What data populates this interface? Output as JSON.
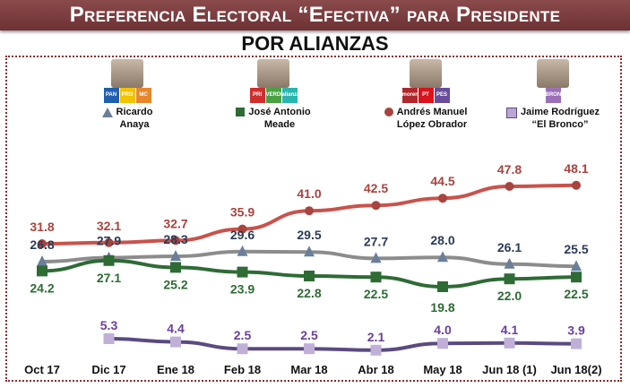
{
  "header": {
    "title": "Preferencia Electoral “Efectiva” para Presidente",
    "subtitle": "POR ALIANZAS"
  },
  "legend": [
    {
      "line1": "Ricardo",
      "line2": "Anaya",
      "marker": "triangle",
      "color": "#6b7f99",
      "logos": [
        "PAN",
        "PRD",
        "MC"
      ],
      "logo_colors": [
        "#1f5fae",
        "#f3c200",
        "#e8862a"
      ]
    },
    {
      "line1": "José Antonio",
      "line2": "Meade",
      "marker": "square",
      "color": "#2e6b35",
      "logos": [
        "PRI",
        "VERDE",
        "alianza"
      ],
      "logo_colors": [
        "#d12d2d",
        "#4aa042",
        "#2ab5b0"
      ]
    },
    {
      "line1": "Andrés  Manuel",
      "line2": "López  Obrador",
      "marker": "circle",
      "color": "#a8443f",
      "logos": [
        "morena",
        "PT",
        "PES"
      ],
      "logo_colors": [
        "#b0282b",
        "#d8131b",
        "#6a4c9c"
      ]
    },
    {
      "line1": "Jaime Rodríguez",
      "line2": "“El Bronco”",
      "marker": "square",
      "color": "#b9a6d4",
      "logos": [
        "BRONCO"
      ],
      "logo_colors": [
        "#9a6fb8"
      ]
    }
  ],
  "chart_data": {
    "type": "line",
    "title": "Preferencia Electoral “Efectiva” para Presidente",
    "subtitle": "POR ALIANZAS",
    "categories": [
      "Oct 17",
      "Dic 17",
      "Ene 18",
      "Feb 18",
      "Mar 18",
      "Abr 18",
      "May 18",
      "Jun 18 (1)",
      "Jun 18(2)"
    ],
    "series": [
      {
        "name": "Andrés Manuel López Obrador",
        "values": [
          31.8,
          32.1,
          32.7,
          35.9,
          41.0,
          42.5,
          44.5,
          47.8,
          48.1
        ],
        "line_color": "#c9524b",
        "marker_color": "#a8443f",
        "label_color": "#a8443f",
        "marker": "circle",
        "label_pos": "above"
      },
      {
        "name": "Ricardo Anaya",
        "values": [
          26.8,
          27.9,
          28.3,
          29.6,
          29.5,
          27.7,
          28.0,
          26.1,
          25.5
        ],
        "line_color": "#8c8c8c",
        "marker_color": "#6b7f99",
        "label_color": "#2b3a55",
        "marker": "triangle",
        "label_pos": "above"
      },
      {
        "name": "José Antonio Meade",
        "values": [
          24.2,
          27.1,
          25.2,
          23.9,
          22.8,
          22.5,
          19.8,
          22.0,
          22.5
        ],
        "line_color": "#2e6b35",
        "marker_color": "#2e6b35",
        "label_color": "#2e6b35",
        "marker": "square",
        "label_pos": "below"
      },
      {
        "name": "Jaime Rodríguez “El Bronco”",
        "values": [
          null,
          5.3,
          4.4,
          2.5,
          2.5,
          2.1,
          4.0,
          4.1,
          3.9
        ],
        "line_color": "#5b4a80",
        "marker_color": "#c0b0d8",
        "label_color": "#6a3f9c",
        "marker": "square",
        "label_pos": "above"
      }
    ],
    "grid": false,
    "legend_position": "top"
  }
}
